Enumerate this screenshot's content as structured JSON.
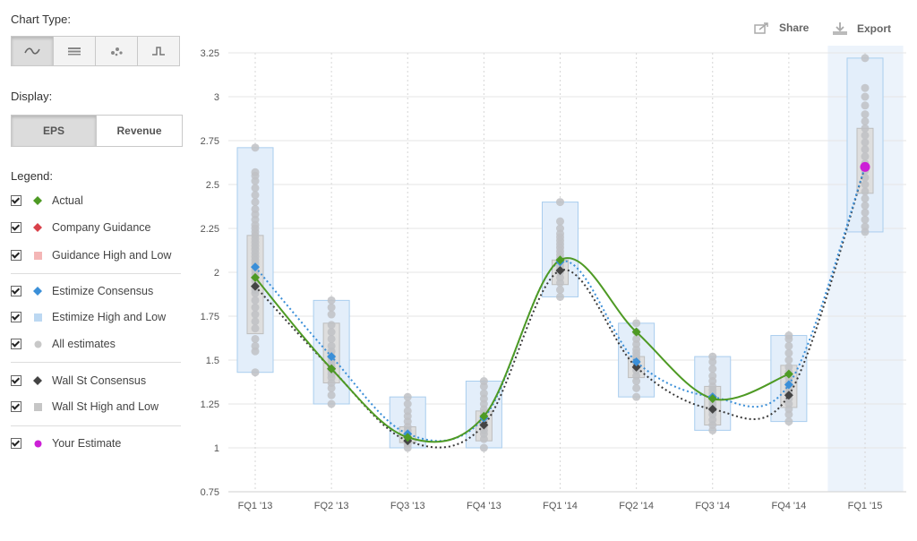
{
  "sidebar": {
    "chart_type_title": "Chart Type:",
    "chart_type_buttons": [
      {
        "icon": "line-chart-icon",
        "active": true
      },
      {
        "icon": "table-icon",
        "active": false
      },
      {
        "icon": "scatter-icon",
        "active": false
      },
      {
        "icon": "step-icon",
        "active": false
      }
    ],
    "display_title": "Display:",
    "display_buttons": [
      {
        "label": "EPS",
        "active": true
      },
      {
        "label": "Revenue",
        "active": false
      }
    ],
    "legend_title": "Legend:",
    "legend": [
      {
        "label": "Actual",
        "marker": "diamond",
        "color": "#4e9a24",
        "checked": true
      },
      {
        "label": "Company Guidance",
        "marker": "diamond",
        "color": "#d9414a",
        "checked": true
      },
      {
        "label": "Guidance High and Low",
        "marker": "square",
        "color": "#f4b6b6",
        "checked": true
      },
      {
        "label": "Estimize Consensus",
        "marker": "diamond",
        "color": "#3b8fd8",
        "checked": true
      },
      {
        "label": "Estimize High and Low",
        "marker": "square",
        "color": "#bcd8f2",
        "checked": true
      },
      {
        "label": "All estimates",
        "marker": "circle",
        "color": "#c8c8c8",
        "checked": true
      },
      {
        "label": "Wall St Consensus",
        "marker": "diamond",
        "color": "#444444",
        "checked": true
      },
      {
        "label": "Wall St High and Low",
        "marker": "square",
        "color": "#c6c6c6",
        "checked": true
      },
      {
        "label": "Your Estimate",
        "marker": "circle",
        "color": "#cc1fd6",
        "checked": true
      }
    ]
  },
  "toolbar": {
    "share_label": "Share",
    "export_label": "Export"
  },
  "colors": {
    "actual": "#4e9a24",
    "estimize": "#3b8fd8",
    "wallst": "#444444",
    "yours": "#cc1fd6",
    "estimize_box_fill": "#e3eefa",
    "estimize_box_stroke": "#a9cdee",
    "wallst_box_fill": "#dedede",
    "wallst_box_stroke": "#bdbdbd",
    "estimate_dot": "#bfc1c4",
    "grid": "#e6e6e6",
    "highlight": "#ecf3fb"
  },
  "chart_data": {
    "type": "line",
    "categories": [
      "FQ1 '13",
      "FQ2 '13",
      "FQ3 '13",
      "FQ4 '13",
      "FQ1 '14",
      "FQ2 '14",
      "FQ3 '14",
      "FQ4 '14",
      "FQ1 '15"
    ],
    "yticks": [
      "0.75",
      "1",
      "1.25",
      "1.5",
      "1.75",
      "2",
      "2.25",
      "2.5",
      "2.75",
      "3",
      "3.25"
    ],
    "ylim": [
      0.75,
      3.25
    ],
    "grid": true,
    "highlight_category": "FQ1 '15",
    "series": [
      {
        "name": "Actual",
        "values": [
          1.97,
          1.45,
          1.06,
          1.18,
          2.07,
          1.66,
          1.28,
          1.42,
          null
        ]
      },
      {
        "name": "Estimize Consensus",
        "values": [
          2.03,
          1.52,
          1.08,
          1.17,
          2.06,
          1.49,
          1.29,
          1.36,
          null
        ]
      },
      {
        "name": "Wall St Consensus",
        "values": [
          1.92,
          1.45,
          1.04,
          1.13,
          2.01,
          1.46,
          1.22,
          1.3,
          null
        ]
      },
      {
        "name": "Your Estimate",
        "values": [
          null,
          null,
          null,
          null,
          null,
          null,
          null,
          null,
          2.6
        ]
      }
    ],
    "estimize_high_low": [
      [
        1.43,
        2.71
      ],
      [
        1.25,
        1.84
      ],
      [
        1.0,
        1.29
      ],
      [
        1.0,
        1.38
      ],
      [
        1.86,
        2.4
      ],
      [
        1.29,
        1.71
      ],
      [
        1.1,
        1.52
      ],
      [
        1.15,
        1.64
      ],
      [
        2.23,
        3.22
      ]
    ],
    "wallst_high_low": [
      [
        1.65,
        2.21
      ],
      [
        1.37,
        1.71
      ],
      [
        1.03,
        1.12
      ],
      [
        1.04,
        1.21
      ],
      [
        1.93,
        2.07
      ],
      [
        1.4,
        1.52
      ],
      [
        1.13,
        1.35
      ],
      [
        1.23,
        1.47
      ],
      [
        2.45,
        2.82
      ]
    ],
    "all_estimates": [
      [
        1.43,
        1.55,
        1.58,
        1.62,
        1.68,
        1.72,
        1.76,
        1.8,
        1.84,
        1.88,
        1.9,
        1.92,
        1.95,
        1.97,
        1.99,
        2.01,
        2.03,
        2.05,
        2.07,
        2.09,
        2.11,
        2.13,
        2.15,
        2.17,
        2.19,
        2.21,
        2.23,
        2.25,
        2.27,
        2.3,
        2.33,
        2.36,
        2.4,
        2.44,
        2.48,
        2.52,
        2.55,
        2.57,
        2.71
      ],
      [
        1.25,
        1.3,
        1.34,
        1.37,
        1.4,
        1.42,
        1.44,
        1.46,
        1.48,
        1.5,
        1.52,
        1.55,
        1.58,
        1.62,
        1.66,
        1.7,
        1.76,
        1.8,
        1.84
      ],
      [
        1.0,
        1.02,
        1.04,
        1.06,
        1.08,
        1.1,
        1.12,
        1.15,
        1.18,
        1.21,
        1.25,
        1.29
      ],
      [
        1.0,
        1.05,
        1.08,
        1.1,
        1.12,
        1.14,
        1.16,
        1.18,
        1.2,
        1.22,
        1.25,
        1.28,
        1.31,
        1.35,
        1.38
      ],
      [
        1.86,
        1.9,
        1.94,
        1.97,
        2.0,
        2.02,
        2.04,
        2.06,
        2.08,
        2.1,
        2.12,
        2.14,
        2.16,
        2.18,
        2.2,
        2.22,
        2.25,
        2.29,
        2.4
      ],
      [
        1.29,
        1.34,
        1.38,
        1.41,
        1.44,
        1.46,
        1.48,
        1.5,
        1.52,
        1.54,
        1.56,
        1.59,
        1.62,
        1.66,
        1.71
      ],
      [
        1.1,
        1.13,
        1.16,
        1.19,
        1.21,
        1.23,
        1.25,
        1.27,
        1.29,
        1.31,
        1.33,
        1.35,
        1.38,
        1.41,
        1.45,
        1.49,
        1.52
      ],
      [
        1.15,
        1.19,
        1.22,
        1.25,
        1.28,
        1.31,
        1.34,
        1.37,
        1.4,
        1.43,
        1.46,
        1.5,
        1.54,
        1.58,
        1.62,
        1.64
      ],
      [
        2.23,
        2.26,
        2.3,
        2.34,
        2.38,
        2.42,
        2.46,
        2.5,
        2.54,
        2.58,
        2.62,
        2.66,
        2.7,
        2.74,
        2.78,
        2.82,
        2.86,
        2.9,
        2.95,
        3.0,
        3.05,
        3.22
      ]
    ]
  }
}
